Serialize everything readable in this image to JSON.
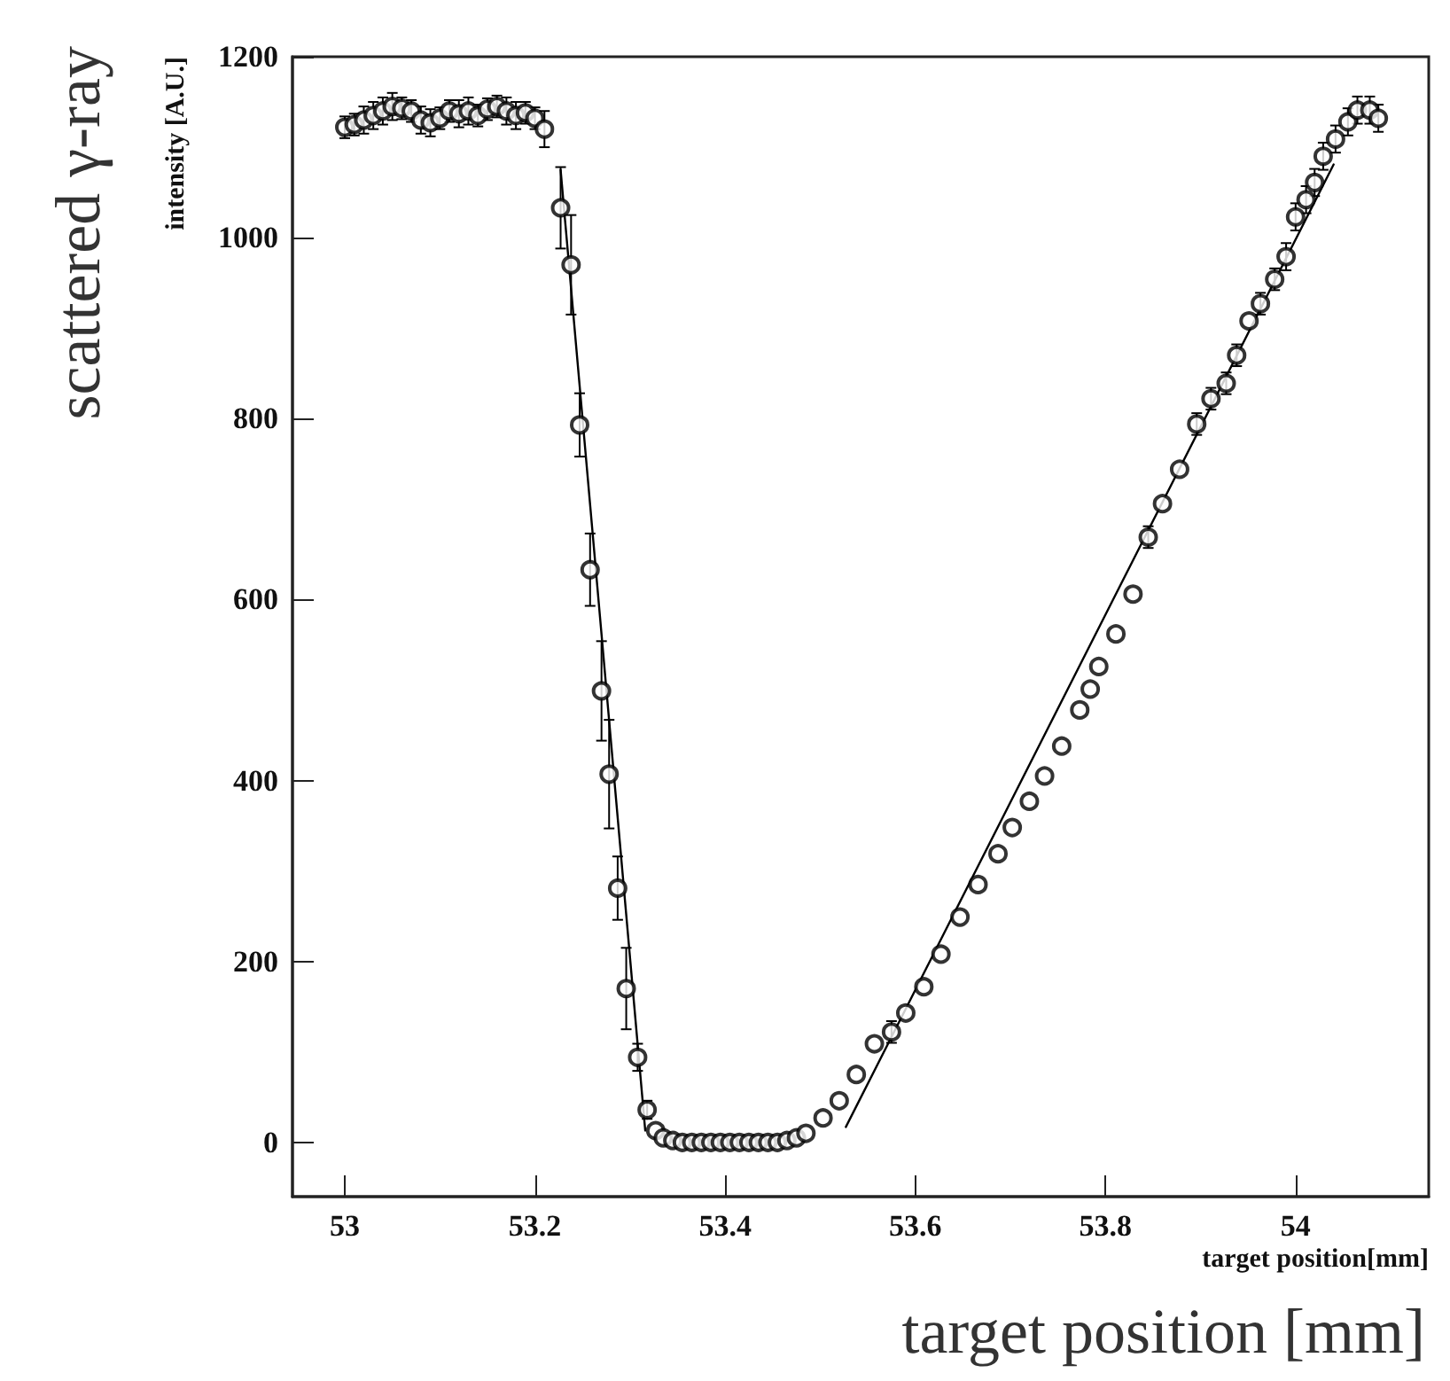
{
  "chart_data": {
    "type": "scatter",
    "xlabel": "target position[mm]",
    "ylabel": "intensity [A.U.]",
    "annotations": [
      "scattered γ-ray",
      "target position [mm]"
    ],
    "xlim": [
      52.945,
      54.14
    ],
    "xticks": [
      53,
      53.2,
      53.4,
      53.6,
      53.8,
      54
    ],
    "ylim": [
      -60,
      1200
    ],
    "yticks": [
      0,
      200,
      400,
      600,
      800,
      1000,
      1200
    ],
    "grid": false,
    "series": [
      {
        "type": "scatter",
        "marker": "circle",
        "color": "#000000",
        "x": [
          53.0,
          53.01,
          53.02,
          53.03,
          53.04,
          53.05,
          53.06,
          53.07,
          53.08,
          53.09,
          53.1,
          53.11,
          53.12,
          53.13,
          53.14,
          53.15,
          53.16,
          53.17,
          53.18,
          53.19,
          53.2,
          53.21,
          53.227,
          53.238,
          53.247,
          53.258,
          53.27,
          53.278,
          53.287,
          53.296,
          53.308,
          53.318,
          53.327,
          53.335,
          53.345,
          53.355,
          53.365,
          53.375,
          53.385,
          53.395,
          53.405,
          53.415,
          53.425,
          53.435,
          53.445,
          53.455,
          53.465,
          53.475,
          53.485,
          53.503,
          53.52,
          53.538,
          53.557,
          53.575,
          53.59,
          53.609,
          53.627,
          53.647,
          53.666,
          53.687,
          53.702,
          53.72,
          53.736,
          53.754,
          53.773,
          53.784,
          53.793,
          53.811,
          53.829,
          53.845,
          53.86,
          53.878,
          53.896,
          53.911,
          53.927,
          53.938,
          53.951,
          53.963,
          53.978,
          53.99,
          54.0,
          54.011,
          54.02,
          54.029,
          54.042,
          54.055,
          54.065,
          54.078,
          54.087
        ],
        "values": [
          1122,
          1125,
          1130,
          1135,
          1140,
          1145,
          1143,
          1140,
          1130,
          1127,
          1132,
          1140,
          1137,
          1140,
          1135,
          1142,
          1145,
          1140,
          1135,
          1138,
          1132,
          1120,
          1033,
          970,
          793,
          633,
          499,
          407,
          281,
          170,
          94,
          36,
          13,
          5,
          2,
          0,
          0,
          0,
          0,
          0,
          0,
          0,
          0,
          0,
          0,
          0,
          2,
          5,
          10,
          27,
          46,
          75,
          109,
          122,
          143,
          172,
          208,
          249,
          285,
          319,
          348,
          377,
          405,
          438,
          478,
          501,
          526,
          562,
          606,
          669,
          706,
          744,
          794,
          822,
          839,
          870,
          908,
          927,
          954,
          979,
          1023,
          1042,
          1061,
          1090,
          1109,
          1128,
          1141,
          1141,
          1132
        ],
        "errors": [
          12,
          12,
          15,
          15,
          15,
          15,
          12,
          12,
          15,
          15,
          12,
          12,
          15,
          15,
          12,
          12,
          12,
          15,
          15,
          12,
          12,
          20,
          45,
          55,
          35,
          40,
          55,
          60,
          35,
          45,
          15,
          10,
          null,
          null,
          null,
          null,
          null,
          null,
          null,
          null,
          null,
          null,
          null,
          null,
          null,
          null,
          null,
          null,
          null,
          null,
          null,
          null,
          null,
          12,
          null,
          null,
          null,
          null,
          null,
          null,
          null,
          null,
          null,
          null,
          null,
          null,
          null,
          null,
          null,
          12,
          null,
          null,
          12,
          12,
          12,
          12,
          null,
          12,
          12,
          15,
          15,
          15,
          15,
          15,
          15,
          15,
          15,
          15,
          15
        ]
      },
      {
        "type": "line",
        "marker": "none",
        "line_style": "solid",
        "color": "#000000",
        "x": [
          53.227,
          53.316
        ],
        "values": [
          1075,
          13
        ]
      },
      {
        "type": "line",
        "marker": "none",
        "line_style": "solid",
        "color": "#000000",
        "x": [
          53.527,
          54.04
        ],
        "values": [
          17,
          1081
        ]
      }
    ]
  }
}
